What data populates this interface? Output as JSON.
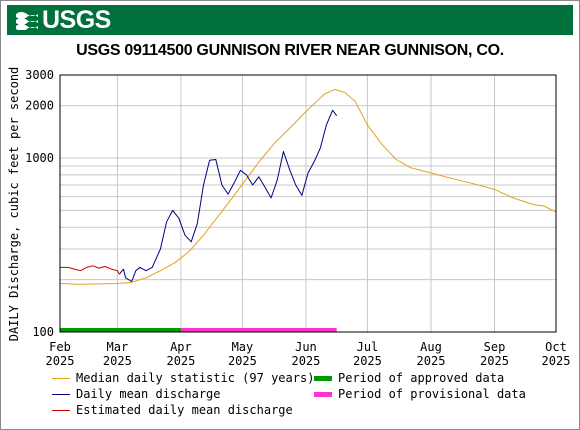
{
  "header": {
    "logo_text": "USGS",
    "banner_color": "#00703c",
    "title": "USGS 09114500 GUNNISON RIVER NEAR GUNNISON, CO."
  },
  "chart_data": {
    "type": "line",
    "title": "USGS 09114500 GUNNISON RIVER NEAR GUNNISON, CO.",
    "ylabel": "DAILY Discharge, cubic feet per second",
    "xlabel": "",
    "y_scale": "log",
    "ylim": [
      100,
      3000
    ],
    "xlim": [
      "2025-02-01",
      "2025-10-01"
    ],
    "grid": true,
    "y_ticks": [
      "100",
      "1000",
      "2000",
      "3000"
    ],
    "x_ticks": [
      {
        "date": "2025-02-01",
        "month": "Feb",
        "year": "2025"
      },
      {
        "date": "2025-03-01",
        "month": "Mar",
        "year": "2025"
      },
      {
        "date": "2025-04-01",
        "month": "Apr",
        "year": "2025"
      },
      {
        "date": "2025-05-01",
        "month": "May",
        "year": "2025"
      },
      {
        "date": "2025-06-01",
        "month": "Jun",
        "year": "2025"
      },
      {
        "date": "2025-07-01",
        "month": "Jul",
        "year": "2025"
      },
      {
        "date": "2025-08-01",
        "month": "Aug",
        "year": "2025"
      },
      {
        "date": "2025-09-01",
        "month": "Sep",
        "year": "2025"
      },
      {
        "date": "2025-10-01",
        "month": "Oct",
        "year": "2025"
      }
    ],
    "series": [
      {
        "name": "Median daily statistic (97 years)",
        "color": "#e6a019",
        "points": [
          [
            "2025-02-01",
            190
          ],
          [
            "2025-02-10",
            188
          ],
          [
            "2025-02-20",
            189
          ],
          [
            "2025-03-01",
            190
          ],
          [
            "2025-03-08",
            193
          ],
          [
            "2025-03-15",
            205
          ],
          [
            "2025-03-22",
            225
          ],
          [
            "2025-03-29",
            250
          ],
          [
            "2025-04-05",
            290
          ],
          [
            "2025-04-12",
            360
          ],
          [
            "2025-04-19",
            460
          ],
          [
            "2025-04-26",
            590
          ],
          [
            "2025-05-03",
            760
          ],
          [
            "2025-05-10",
            980
          ],
          [
            "2025-05-17",
            1230
          ],
          [
            "2025-05-24",
            1480
          ],
          [
            "2025-05-31",
            1800
          ],
          [
            "2025-06-05",
            2050
          ],
          [
            "2025-06-10",
            2330
          ],
          [
            "2025-06-15",
            2480
          ],
          [
            "2025-06-20",
            2380
          ],
          [
            "2025-06-25",
            2120
          ],
          [
            "2025-07-01",
            1550
          ],
          [
            "2025-07-08",
            1200
          ],
          [
            "2025-07-15",
            980
          ],
          [
            "2025-07-22",
            880
          ],
          [
            "2025-08-01",
            820
          ],
          [
            "2025-08-10",
            770
          ],
          [
            "2025-08-20",
            720
          ],
          [
            "2025-09-01",
            660
          ],
          [
            "2025-09-10",
            590
          ],
          [
            "2025-09-20",
            540
          ],
          [
            "2025-09-25",
            530
          ],
          [
            "2025-10-01",
            490
          ]
        ]
      },
      {
        "name": "Daily mean discharge",
        "color": "#000080",
        "points": [
          [
            "2025-03-02",
            215
          ],
          [
            "2025-03-04",
            230
          ],
          [
            "2025-03-05",
            205
          ],
          [
            "2025-03-08",
            195
          ],
          [
            "2025-03-10",
            225
          ],
          [
            "2025-03-12",
            235
          ],
          [
            "2025-03-15",
            225
          ],
          [
            "2025-03-18",
            235
          ],
          [
            "2025-03-22",
            300
          ],
          [
            "2025-03-25",
            430
          ],
          [
            "2025-03-28",
            500
          ],
          [
            "2025-03-31",
            450
          ],
          [
            "2025-04-03",
            360
          ],
          [
            "2025-04-06",
            330
          ],
          [
            "2025-04-09",
            420
          ],
          [
            "2025-04-12",
            700
          ],
          [
            "2025-04-15",
            970
          ],
          [
            "2025-04-18",
            980
          ],
          [
            "2025-04-21",
            700
          ],
          [
            "2025-04-24",
            620
          ],
          [
            "2025-04-27",
            720
          ],
          [
            "2025-04-30",
            850
          ],
          [
            "2025-05-03",
            800
          ],
          [
            "2025-05-06",
            700
          ],
          [
            "2025-05-09",
            780
          ],
          [
            "2025-05-12",
            680
          ],
          [
            "2025-05-15",
            590
          ],
          [
            "2025-05-18",
            750
          ],
          [
            "2025-05-21",
            1090
          ],
          [
            "2025-05-24",
            860
          ],
          [
            "2025-05-27",
            700
          ],
          [
            "2025-05-30",
            610
          ],
          [
            "2025-06-02",
            820
          ],
          [
            "2025-06-05",
            950
          ],
          [
            "2025-06-08",
            1140
          ],
          [
            "2025-06-11",
            1550
          ],
          [
            "2025-06-14",
            1880
          ],
          [
            "2025-06-16",
            1750
          ]
        ]
      },
      {
        "name": "Estimated daily mean discharge",
        "color": "#cc0000",
        "points": [
          [
            "2025-02-01",
            235
          ],
          [
            "2025-02-05",
            235
          ],
          [
            "2025-02-08",
            230
          ],
          [
            "2025-02-11",
            225
          ],
          [
            "2025-02-14",
            235
          ],
          [
            "2025-02-17",
            240
          ],
          [
            "2025-02-20",
            233
          ],
          [
            "2025-02-23",
            238
          ],
          [
            "2025-02-26",
            230
          ],
          [
            "2025-03-01",
            225
          ],
          [
            "2025-03-02",
            215
          ]
        ]
      }
    ],
    "period_bars": [
      {
        "name": "Period of approved data",
        "color": "#009900",
        "start": "2025-02-01",
        "end": "2025-04-01"
      },
      {
        "name": "Period of provisional data",
        "color": "#ff33cc",
        "start": "2025-04-01",
        "end": "2025-06-16"
      }
    ]
  },
  "legend": [
    {
      "label": "Median daily statistic (97 years)",
      "color": "#e6a019",
      "kind": "line"
    },
    {
      "label": "Period of approved data",
      "color": "#009900",
      "kind": "bar"
    },
    {
      "label": "Daily mean discharge",
      "color": "#000080",
      "kind": "line"
    },
    {
      "label": "Period of provisional data",
      "color": "#ff33cc",
      "kind": "bar"
    },
    {
      "label": "Estimated daily mean discharge",
      "color": "#cc0000",
      "kind": "line"
    }
  ]
}
